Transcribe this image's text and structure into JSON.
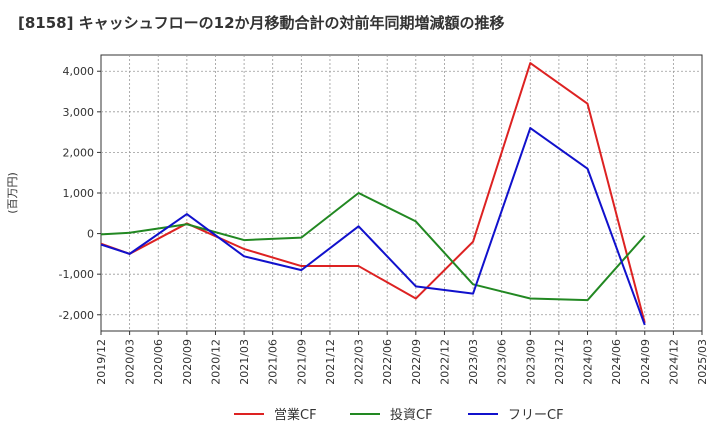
{
  "chart_data": {
    "type": "line",
    "title": "[8158]  キャッシュフローの12か月移動合計の対前年同期増減額の推移",
    "ylabel": "(百万円)",
    "xlabel": "",
    "categories": [
      "2019/12",
      "2020/03",
      "2020/06",
      "2020/09",
      "2020/12",
      "2021/03",
      "2021/06",
      "2021/09",
      "2021/12",
      "2022/03",
      "2022/06",
      "2022/09",
      "2022/12",
      "2023/03",
      "2023/06",
      "2023/09",
      "2023/12",
      "2024/03",
      "2024/06",
      "2024/09",
      "2024/12",
      "2025/03"
    ],
    "ylim": [
      -2400,
      4400
    ],
    "yticks": [
      -2000,
      -1000,
      0,
      1000,
      2000,
      3000,
      4000
    ],
    "ytick_labels": [
      "-2,000",
      "-1,000",
      "0",
      "1,000",
      "2,000",
      "3,000",
      "4,000"
    ],
    "grid": true,
    "legend_position": "bottom",
    "series": [
      {
        "name": "営業CF",
        "color": "#dd2222",
        "points": [
          [
            "2019/12",
            -250
          ],
          [
            "2020/03",
            -500
          ],
          [
            "2020/09",
            250
          ],
          [
            "2021/03",
            -380
          ],
          [
            "2021/09",
            -800
          ],
          [
            "2022/03",
            -800
          ],
          [
            "2022/09",
            -1600
          ],
          [
            "2023/03",
            -200
          ],
          [
            "2023/09",
            4200
          ],
          [
            "2024/03",
            3200
          ],
          [
            "2024/09",
            -2200
          ]
        ]
      },
      {
        "name": "投資CF",
        "color": "#228822",
        "points": [
          [
            "2019/12",
            -20
          ],
          [
            "2020/03",
            20
          ],
          [
            "2020/09",
            230
          ],
          [
            "2021/03",
            -160
          ],
          [
            "2021/09",
            -100
          ],
          [
            "2022/03",
            1000
          ],
          [
            "2022/09",
            300
          ],
          [
            "2023/03",
            -1250
          ],
          [
            "2023/09",
            -1600
          ],
          [
            "2024/03",
            -1640
          ],
          [
            "2024/09",
            -50
          ]
        ]
      },
      {
        "name": "フリーCF",
        "color": "#1111cc",
        "points": [
          [
            "2019/12",
            -270
          ],
          [
            "2020/03",
            -500
          ],
          [
            "2020/09",
            480
          ],
          [
            "2021/03",
            -560
          ],
          [
            "2021/09",
            -900
          ],
          [
            "2022/03",
            180
          ],
          [
            "2022/09",
            -1300
          ],
          [
            "2023/03",
            -1480
          ],
          [
            "2023/09",
            2600
          ],
          [
            "2024/03",
            1600
          ],
          [
            "2024/09",
            -2250
          ]
        ]
      }
    ]
  }
}
